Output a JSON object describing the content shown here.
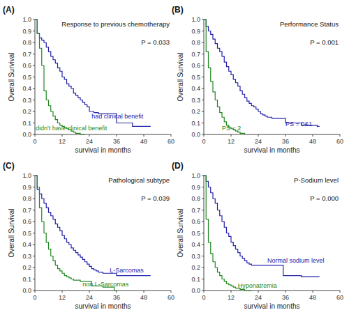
{
  "chart_data": [
    {
      "type": "line",
      "line_style": "step",
      "grid": false,
      "title": "Response to previous chemotherapy",
      "subtitle": "P = 0.033",
      "xlabel": "survival in months",
      "ylabel": "Overall Survival",
      "xlim": [
        0,
        60
      ],
      "ylim": [
        0.0,
        1.0
      ],
      "xticks": [
        0,
        12,
        24,
        36,
        48,
        60
      ],
      "yticks": [
        {
          "value": 0.0,
          "label": "0.0"
        },
        0.1,
        0.2,
        0.3,
        0.4,
        0.5,
        0.6,
        0.7,
        0.8,
        0.9,
        {
          "value": 1.0,
          "label": "1.0"
        }
      ],
      "series": [
        {
          "color": "#2222aa",
          "x": [
            0,
            1,
            2,
            3,
            4,
            5,
            6,
            7,
            8,
            9,
            10,
            11,
            12,
            13,
            14,
            15,
            16,
            17,
            18,
            19,
            20,
            21,
            22,
            23,
            24,
            25,
            26,
            27,
            28,
            30,
            36,
            37,
            43,
            44,
            50,
            51
          ],
          "values": [
            1.0,
            0.88,
            0.84,
            0.82,
            0.8,
            0.76,
            0.72,
            0.68,
            0.65,
            0.62,
            0.58,
            0.55,
            0.5,
            0.48,
            0.44,
            0.42,
            0.4,
            0.36,
            0.34,
            0.32,
            0.3,
            0.28,
            0.26,
            0.24,
            0.2,
            0.2,
            0.19,
            0.19,
            0.18,
            0.18,
            0.1,
            0.1,
            0.07,
            0.07,
            0.07,
            0.07
          ]
        },
        {
          "color": "#228822",
          "x": [
            0,
            1,
            2,
            3,
            4,
            5,
            6,
            7,
            8,
            9,
            10,
            11,
            12,
            13,
            14,
            15,
            16,
            17,
            18,
            19,
            20,
            21,
            22
          ],
          "values": [
            1.0,
            0.88,
            0.75,
            0.6,
            0.38,
            0.3,
            0.25,
            0.2,
            0.16,
            0.13,
            0.1,
            0.08,
            0.07,
            0.06,
            0.05,
            0.04,
            0.03,
            0.02,
            0.01,
            0.01,
            0.0,
            0.0,
            0.0
          ]
        }
      ],
      "annotations": [
        {
          "text": "(A)"
        },
        {
          "text": "had clinical benefit",
          "x": 25,
          "y": 0.155,
          "color": "#2222aa"
        },
        {
          "text": "didn't have clinical benefit",
          "x": 0.3,
          "y": 0.055,
          "color": "#228822"
        }
      ]
    },
    {
      "type": "line",
      "line_style": "step",
      "grid": false,
      "title": "Performance Status",
      "subtitle": "P = 0.001",
      "xlabel": "survival in months",
      "ylabel": "Overall Survival",
      "xlim": [
        0,
        60
      ],
      "ylim": [
        0.0,
        1.0
      ],
      "xticks": [
        0,
        12,
        24,
        36,
        48,
        60
      ],
      "yticks": [
        {
          "value": 0.0,
          "label": "0.0"
        },
        0.1,
        0.2,
        0.3,
        0.4,
        0.5,
        0.6,
        0.7,
        0.8,
        0.9,
        {
          "value": 1.0,
          "label": "1.0"
        }
      ],
      "series": [
        {
          "color": "#2222aa",
          "x": [
            0,
            1,
            2,
            3,
            4,
            5,
            6,
            7,
            8,
            9,
            10,
            11,
            12,
            13,
            14,
            15,
            16,
            17,
            18,
            19,
            20,
            21,
            22,
            23,
            24,
            25,
            26,
            27,
            28,
            30,
            36,
            37,
            43,
            44,
            50,
            51
          ],
          "values": [
            1.0,
            0.94,
            0.9,
            0.87,
            0.83,
            0.79,
            0.75,
            0.72,
            0.68,
            0.63,
            0.59,
            0.55,
            0.52,
            0.48,
            0.45,
            0.42,
            0.38,
            0.35,
            0.32,
            0.29,
            0.27,
            0.25,
            0.24,
            0.22,
            0.2,
            0.18,
            0.17,
            0.16,
            0.15,
            0.14,
            0.1,
            0.1,
            0.08,
            0.08,
            0.07,
            0.07
          ]
        },
        {
          "color": "#228822",
          "x": [
            0,
            1,
            2,
            3,
            4,
            5,
            6,
            7,
            8,
            9,
            10,
            11,
            12,
            13,
            14,
            15,
            16,
            17,
            18
          ],
          "values": [
            1.0,
            0.72,
            0.58,
            0.46,
            0.37,
            0.3,
            0.24,
            0.19,
            0.15,
            0.11,
            0.08,
            0.06,
            0.05,
            0.04,
            0.03,
            0.02,
            0.01,
            0.01,
            0.0
          ]
        }
      ],
      "annotations": [
        {
          "text": "(B)"
        },
        {
          "text": "PS = 0&1",
          "x": 36,
          "y": 0.09,
          "color": "#2222aa"
        },
        {
          "text": "PS = 2",
          "x": 8,
          "y": 0.055,
          "color": "#228822"
        }
      ]
    },
    {
      "type": "line",
      "line_style": "step",
      "grid": false,
      "title": "Pathological subtype",
      "subtitle": "P = 0.039",
      "xlabel": "survival in months",
      "ylabel": "Overall Survival",
      "xlim": [
        0,
        60
      ],
      "ylim": [
        0.0,
        1.0
      ],
      "xticks": [
        0,
        12,
        24,
        36,
        48,
        60
      ],
      "yticks": [
        {
          "value": 0.0,
          "label": "0.0"
        },
        0.1,
        0.2,
        0.3,
        0.4,
        0.5,
        0.6,
        0.7,
        0.8,
        0.9,
        {
          "value": 1.0,
          "label": "1.0"
        }
      ],
      "series": [
        {
          "color": "#2222aa",
          "x": [
            0,
            1,
            2,
            3,
            4,
            5,
            6,
            7,
            8,
            9,
            10,
            11,
            12,
            13,
            14,
            15,
            16,
            17,
            18,
            19,
            20,
            21,
            22,
            23,
            24,
            25,
            26,
            27,
            28,
            30,
            36,
            37,
            43,
            44,
            50,
            51
          ],
          "values": [
            1.0,
            0.88,
            0.84,
            0.8,
            0.76,
            0.72,
            0.68,
            0.65,
            0.62,
            0.58,
            0.55,
            0.52,
            0.48,
            0.45,
            0.42,
            0.4,
            0.37,
            0.35,
            0.33,
            0.31,
            0.29,
            0.27,
            0.25,
            0.23,
            0.21,
            0.19,
            0.18,
            0.17,
            0.16,
            0.15,
            0.13,
            0.13,
            0.13,
            0.13,
            0.13,
            0.13
          ]
        },
        {
          "color": "#228822",
          "x": [
            0,
            1,
            2,
            3,
            4,
            5,
            6,
            7,
            8,
            9,
            10,
            11,
            12,
            13,
            14,
            15,
            16,
            17,
            18,
            19,
            20,
            21,
            22,
            23,
            24,
            25,
            26,
            30,
            35,
            36
          ],
          "values": [
            1.0,
            0.9,
            0.72,
            0.6,
            0.5,
            0.42,
            0.36,
            0.3,
            0.26,
            0.22,
            0.19,
            0.17,
            0.15,
            0.13,
            0.12,
            0.11,
            0.1,
            0.09,
            0.09,
            0.09,
            0.08,
            0.08,
            0.08,
            0.08,
            0.08,
            0.04,
            0.04,
            0.03,
            0.0,
            0.0
          ]
        }
      ],
      "annotations": [
        {
          "text": "(C)"
        },
        {
          "text": "L-Sarcomas",
          "x": 33,
          "y": 0.175,
          "color": "#2222aa"
        },
        {
          "text": "non L-Sarcomas",
          "x": 21,
          "y": 0.055,
          "color": "#228822"
        }
      ]
    },
    {
      "type": "line",
      "line_style": "step",
      "grid": false,
      "title": "P-Sodium level",
      "subtitle": "P = 0.000",
      "xlabel": "survival in months",
      "ylabel": "Overall Survival",
      "xlim": [
        0,
        60
      ],
      "ylim": [
        0.0,
        1.0
      ],
      "xticks": [
        0,
        12,
        24,
        36,
        48,
        60
      ],
      "yticks": [
        {
          "value": 0.0,
          "label": "0.0"
        },
        0.1,
        0.2,
        0.3,
        0.4,
        0.5,
        0.6,
        0.7,
        0.8,
        0.9,
        {
          "value": 1.0,
          "label": "1.0"
        }
      ],
      "series": [
        {
          "color": "#2222aa",
          "x": [
            0,
            1,
            2,
            3,
            4,
            5,
            6,
            7,
            8,
            9,
            10,
            11,
            12,
            13,
            14,
            15,
            16,
            17,
            18,
            19,
            20,
            21,
            22,
            23,
            24,
            25,
            26,
            27,
            28,
            30,
            35,
            36,
            43,
            44,
            50,
            51
          ],
          "values": [
            1.0,
            0.95,
            0.9,
            0.85,
            0.8,
            0.76,
            0.7,
            0.65,
            0.6,
            0.55,
            0.5,
            0.47,
            0.42,
            0.39,
            0.36,
            0.33,
            0.3,
            0.28,
            0.26,
            0.24,
            0.23,
            0.22,
            0.22,
            0.22,
            0.22,
            0.22,
            0.22,
            0.22,
            0.22,
            0.22,
            0.13,
            0.13,
            0.12,
            0.12,
            0.12,
            0.12
          ]
        },
        {
          "color": "#228822",
          "x": [
            0,
            1,
            2,
            3,
            4,
            5,
            6,
            7,
            8,
            9,
            10,
            11,
            12,
            13,
            14,
            15,
            16,
            17,
            18,
            19,
            20,
            21
          ],
          "values": [
            1.0,
            0.62,
            0.42,
            0.32,
            0.25,
            0.2,
            0.16,
            0.13,
            0.1,
            0.08,
            0.06,
            0.05,
            0.04,
            0.03,
            0.02,
            0.02,
            0.01,
            0.01,
            0.0,
            0.0,
            0.0,
            0.0
          ]
        }
      ],
      "annotations": [
        {
          "text": "(D)"
        },
        {
          "text": "Normal sodium level",
          "x": 28,
          "y": 0.26,
          "color": "#2222aa"
        },
        {
          "text": "Hyponatremia",
          "x": 15,
          "y": 0.04,
          "color": "#228822"
        }
      ]
    }
  ]
}
